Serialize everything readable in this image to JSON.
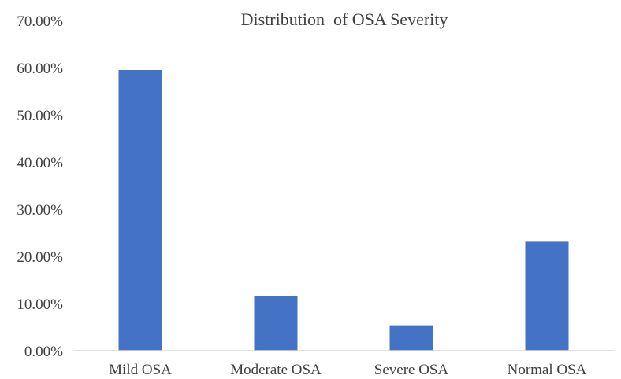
{
  "chart_data": {
    "type": "bar",
    "title": "Distribution  of OSA Severity",
    "categories": [
      "Mild OSA",
      "Moderate OSA",
      "Severe OSA",
      "Normal OSA"
    ],
    "values": [
      59.5,
      11.5,
      5.4,
      23.1
    ],
    "ylim": [
      0,
      70
    ],
    "yticks": [
      0,
      10,
      20,
      30,
      40,
      50,
      60,
      70
    ],
    "ytick_labels": [
      "0.00%",
      "10.00%",
      "20.00%",
      "30.00%",
      "40.00%",
      "50.00%",
      "60.00%",
      "70.00%"
    ],
    "xlabel": "",
    "ylabel": "",
    "grid": false,
    "bar_color": "#4472C4",
    "axis_color": "#D9D9D9"
  }
}
